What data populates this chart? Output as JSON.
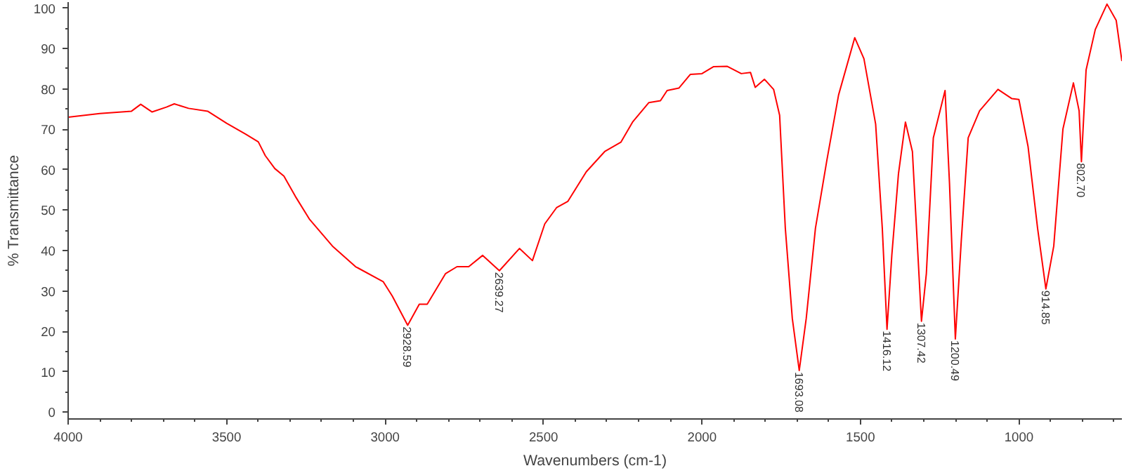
{
  "chart_data": {
    "type": "line",
    "xlabel": "Wavenumbers (cm-1)",
    "ylabel": "% Transmittance",
    "xlim": [
      4000,
      675
    ],
    "ylim": [
      -1.7,
      101.5
    ],
    "xticks": [
      4000,
      3500,
      3000,
      2500,
      2000,
      1500,
      1000
    ],
    "yticks": [
      0,
      10,
      20,
      30,
      40,
      50,
      60,
      70,
      80,
      90,
      100
    ],
    "grid": false,
    "line_style": "solid",
    "marker": "none",
    "series": [
      {
        "color": "#ff0000",
        "x": [
          4000,
          3900,
          3800,
          3771,
          3735,
          3690,
          3665,
          3620,
          3560,
          3500,
          3440,
          3400,
          3378,
          3348,
          3319,
          3283,
          3239,
          3166,
          3093,
          3006,
          2977,
          2928.59,
          2892,
          2867,
          2809,
          2773,
          2736,
          2692,
          2639.27,
          2576,
          2535,
          2496,
          2459,
          2423,
          2365,
          2307,
          2256,
          2219,
          2168,
          2131,
          2110,
          2073,
          2037,
          2000,
          1964,
          1920,
          1876,
          1847,
          1832,
          1803,
          1774,
          1755,
          1737,
          1715,
          1693.08,
          1671,
          1642,
          1606,
          1569,
          1518,
          1489,
          1452,
          1431,
          1416.12,
          1401,
          1380,
          1358,
          1336,
          1307.42,
          1292,
          1270,
          1233,
          1219,
          1200.49,
          1182,
          1160,
          1124,
          1066,
          1022,
          1000,
          971,
          941,
          914.85,
          890,
          861,
          828,
          810,
          802.7,
          788,
          759,
          722,
          693,
          675
        ],
        "values": [
          73.0,
          73.9,
          74.5,
          76.2,
          74.3,
          75.5,
          76.3,
          75.2,
          74.5,
          71.5,
          68.8,
          66.9,
          63.5,
          60.3,
          58.4,
          53.4,
          47.8,
          41.1,
          36.0,
          32.3,
          28.7,
          21.5,
          26.7,
          26.7,
          34.3,
          36.0,
          36.0,
          38.8,
          35.0,
          40.5,
          37.5,
          46.6,
          50.6,
          52.2,
          59.5,
          64.5,
          66.8,
          71.8,
          76.6,
          77.1,
          79.6,
          80.2,
          83.6,
          83.8,
          85.5,
          85.6,
          83.8,
          84.1,
          80.4,
          82.4,
          79.9,
          73.5,
          45.5,
          23.2,
          10.3,
          23.2,
          45.5,
          62.3,
          78.5,
          92.7,
          87.5,
          71.3,
          45.5,
          20.5,
          38.8,
          59.0,
          71.8,
          64.5,
          22.5,
          34.3,
          67.9,
          79.6,
          56.7,
          18.1,
          42.2,
          67.9,
          74.6,
          79.9,
          77.6,
          77.4,
          65.7,
          45.5,
          30.5,
          41.1,
          70.1,
          81.5,
          74.6,
          62.0,
          84.7,
          94.7,
          101.0,
          97.0,
          86.9
        ]
      }
    ],
    "annotations": [
      {
        "text": "2928.59",
        "x": 2928.59,
        "y": 21.5
      },
      {
        "text": "2639.27",
        "x": 2639.27,
        "y": 35.0
      },
      {
        "text": "1693.08",
        "x": 1693.08,
        "y": 10.3
      },
      {
        "text": "1416.12",
        "x": 1416.12,
        "y": 20.5
      },
      {
        "text": "1307.42",
        "x": 1307.42,
        "y": 22.5
      },
      {
        "text": "1200.49",
        "x": 1200.49,
        "y": 18.1
      },
      {
        "text": "914.85",
        "x": 914.85,
        "y": 30.5
      },
      {
        "text": "802.70",
        "x": 802.7,
        "y": 62.0
      }
    ]
  }
}
